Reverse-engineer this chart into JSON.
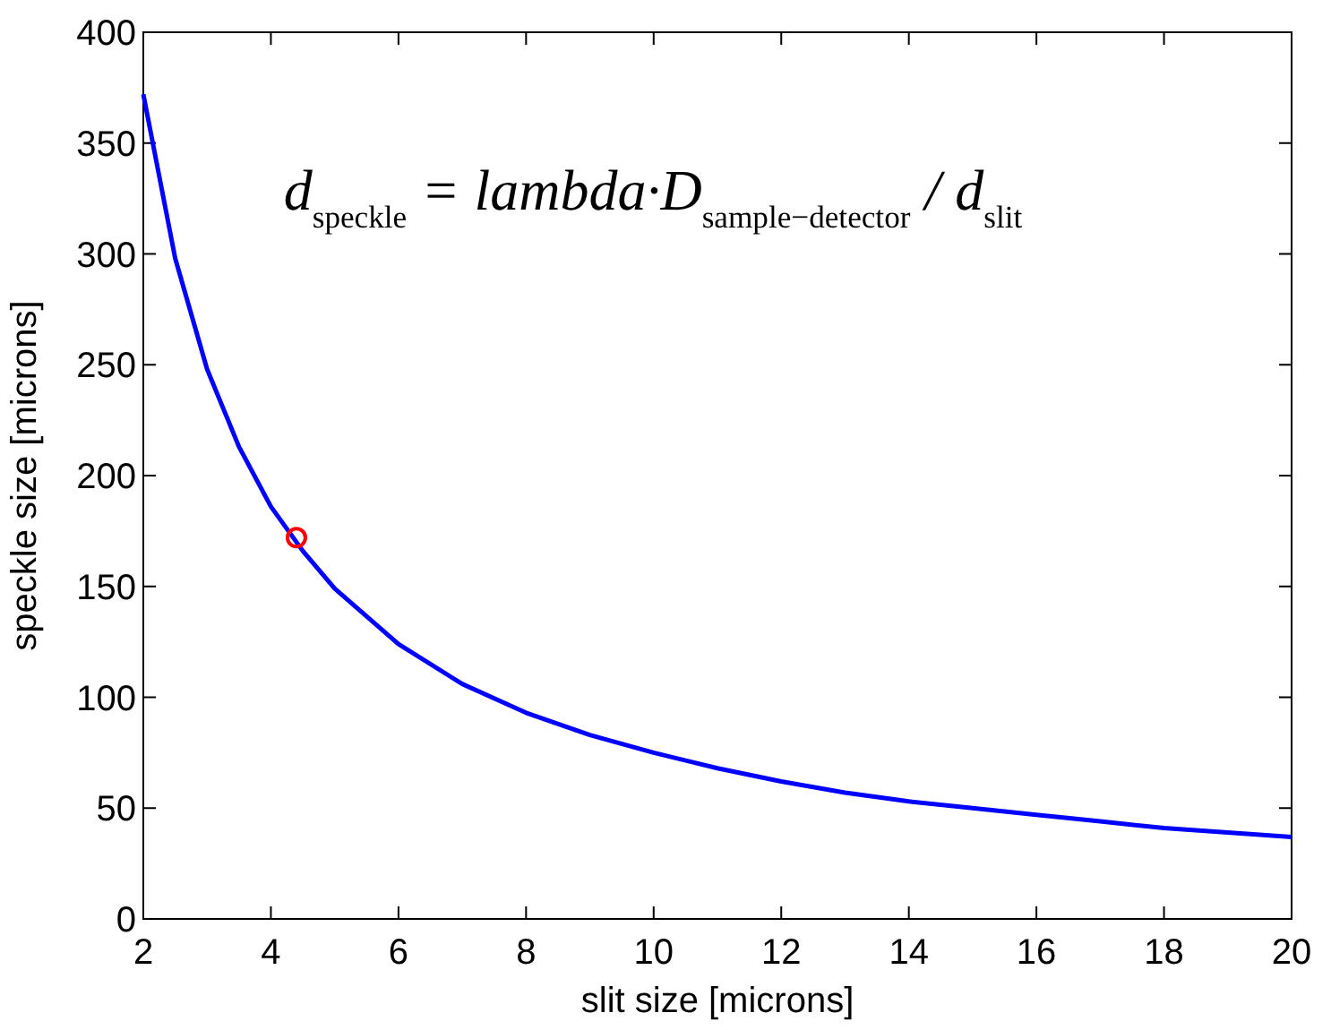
{
  "chart_data": {
    "type": "line",
    "xlabel": "slit size [microns]",
    "ylabel": "speckle size [microns]",
    "annotations": [
      "d$_{speckle}$ = lambda·D$_{sample−detector}$ / d$_{slit}$"
    ],
    "xlim": [
      2,
      20
    ],
    "xticks": [
      2,
      4,
      6,
      8,
      10,
      12,
      14,
      16,
      18,
      20
    ],
    "ylim": [
      0,
      400
    ],
    "yticks": [
      0,
      50,
      100,
      150,
      200,
      250,
      300,
      350,
      400
    ],
    "grid": false,
    "series": [
      {
        "type": "line",
        "color": "#0000ff",
        "marker": "none",
        "x": [
          2,
          2.5,
          3,
          3.5,
          4,
          4.5,
          5,
          6,
          7,
          8,
          9,
          10,
          11,
          12,
          13,
          14,
          15,
          16,
          17,
          18,
          19,
          20
        ],
        "values": [
          372,
          298,
          248,
          213,
          186,
          166,
          149,
          124,
          106,
          93,
          83,
          75,
          68,
          62,
          57,
          53,
          50,
          47,
          44,
          41,
          39,
          37
        ]
      },
      {
        "type": "scatter",
        "color": "#ff0000",
        "marker": "circle",
        "x": [
          4.4
        ],
        "values": [
          172
        ]
      }
    ]
  }
}
